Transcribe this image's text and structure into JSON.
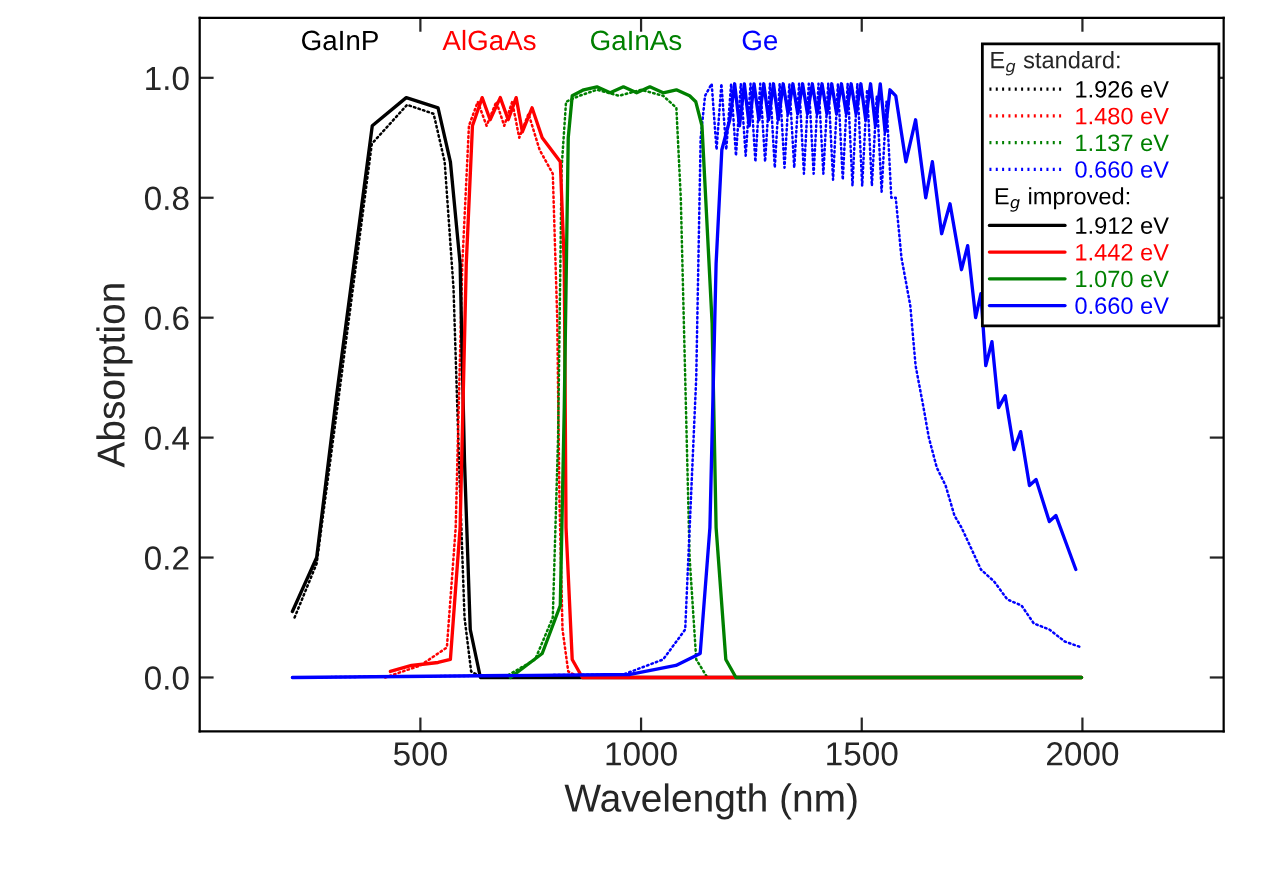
{
  "chart_data": {
    "type": "line",
    "xlabel": "Wavelength (nm)",
    "ylabel": "Absorption",
    "xlim": [
      0,
      2320
    ],
    "ylim": [
      -0.09,
      1.1
    ],
    "xticks": [
      500,
      1000,
      1500,
      2000
    ],
    "yticks": [
      {
        "value": 0,
        "label": "0.0"
      },
      {
        "value": 0.2,
        "label": "0.2"
      },
      {
        "value": 0.4,
        "label": "0.4"
      },
      {
        "value": 0.6,
        "label": "0.6"
      },
      {
        "value": 0.8,
        "label": "0.8"
      },
      {
        "value": 1,
        "label": "1.0"
      }
    ],
    "grid": false,
    "legend": "top right",
    "legend_title": "E$_{g}$ standard:",
    "marker": "none",
    "annotations": [
      "GaInP",
      "AlGaAs",
      "GaInAs",
      "Ge",
      "E$_{g}$ improved:"
    ],
    "series": [
      {
        "name": "1.926 eV",
        "color": "#000000",
        "line_style": "dotted",
        "x": [
          215,
          265,
          310,
          390,
          470,
          530,
          555,
          575,
          588,
          600,
          615,
          640,
          1998
        ],
        "values": [
          0.1,
          0.19,
          0.44,
          0.89,
          0.955,
          0.94,
          0.86,
          0.65,
          0.35,
          0.1,
          0.01,
          0,
          0
        ]
      },
      {
        "name": "1.480 eV",
        "color": "#ff0000",
        "line_style": "dotted",
        "x": [
          420,
          500,
          560,
          580,
          595,
          610,
          630,
          650,
          672,
          690,
          708,
          724,
          745,
          770,
          800,
          810,
          815,
          822,
          835,
          860
        ],
        "values": [
          0,
          0.02,
          0.05,
          0.25,
          0.69,
          0.92,
          0.96,
          0.92,
          0.96,
          0.92,
          0.96,
          0.9,
          0.94,
          0.88,
          0.84,
          0.6,
          0.3,
          0.08,
          0.01,
          0
        ]
      },
      {
        "name": "1.137 eV",
        "color": "#008000",
        "line_style": "dotted",
        "x": [
          690,
          760,
          800,
          812,
          820,
          830,
          860,
          900,
          950,
          1000,
          1050,
          1080,
          1090,
          1100,
          1110,
          1125,
          1150,
          1998
        ],
        "values": [
          0,
          0.03,
          0.1,
          0.4,
          0.85,
          0.96,
          0.97,
          0.98,
          0.97,
          0.98,
          0.97,
          0.95,
          0.8,
          0.5,
          0.2,
          0.03,
          0,
          0
        ]
      },
      {
        "name": "0.660 eV",
        "color": "#0000ff",
        "line_style": "dotted",
        "x": [
          210,
          960,
          1050,
          1100,
          1125,
          1135,
          1145,
          1160,
          1171,
          1182,
          1193,
          1204,
          1215,
          1226,
          1237,
          1248,
          1259,
          1270,
          1281,
          1292,
          1303,
          1314,
          1325,
          1336,
          1347,
          1358,
          1369,
          1380,
          1391,
          1402,
          1413,
          1424,
          1435,
          1446,
          1457,
          1468,
          1479,
          1490,
          1501,
          1512,
          1523,
          1534,
          1545,
          1556,
          1567,
          1577,
          1590,
          1610,
          1622,
          1640,
          1652,
          1670,
          1690,
          1710,
          1726,
          1745,
          1770,
          1800,
          1830,
          1862,
          1890,
          1925,
          1960,
          1998
        ],
        "values": [
          0,
          0.005,
          0.03,
          0.08,
          0.5,
          0.9,
          0.97,
          0.99,
          0.88,
          0.99,
          0.88,
          0.99,
          0.87,
          0.99,
          0.87,
          0.99,
          0.86,
          0.99,
          0.86,
          0.99,
          0.85,
          0.99,
          0.85,
          0.99,
          0.85,
          0.99,
          0.84,
          0.99,
          0.84,
          0.99,
          0.84,
          0.99,
          0.83,
          0.99,
          0.83,
          0.99,
          0.82,
          0.99,
          0.82,
          0.98,
          0.82,
          0.97,
          0.81,
          0.96,
          0.8,
          0.8,
          0.7,
          0.62,
          0.52,
          0.45,
          0.4,
          0.35,
          0.32,
          0.27,
          0.25,
          0.22,
          0.18,
          0.16,
          0.13,
          0.12,
          0.09,
          0.08,
          0.06,
          0.05
        ]
      },
      {
        "name": "1.912 eV",
        "color": "#000000",
        "line_style": "solid",
        "x": [
          210,
          265,
          310,
          391,
          468,
          540,
          568,
          590,
          600,
          613,
          636,
          1998
        ],
        "values": [
          0.11,
          0.2,
          0.47,
          0.92,
          0.967,
          0.95,
          0.86,
          0.69,
          0.36,
          0.08,
          0,
          0
        ]
      },
      {
        "name": "1.442 eV",
        "color": "#ff0000",
        "line_style": "solid",
        "x": [
          432,
          480,
          540,
          568,
          590,
          604,
          618,
          640,
          658,
          681,
          699,
          717,
          731,
          753,
          776,
          817,
          826,
          830,
          844,
          867,
          1998
        ],
        "values": [
          0.01,
          0.02,
          0.025,
          0.03,
          0.25,
          0.69,
          0.92,
          0.967,
          0.93,
          0.967,
          0.93,
          0.967,
          0.91,
          0.95,
          0.9,
          0.86,
          0.69,
          0.25,
          0.03,
          0,
          0
        ]
      },
      {
        "name": "1.070 eV",
        "color": "#008000",
        "line_style": "solid",
        "x": [
          704,
          776,
          817,
          826,
          835,
          844,
          870,
          900,
          930,
          960,
          990,
          1020,
          1050,
          1080,
          1110,
          1124,
          1138,
          1161,
          1170,
          1192,
          1215,
          1998
        ],
        "values": [
          0,
          0.04,
          0.12,
          0.45,
          0.9,
          0.97,
          0.98,
          0.985,
          0.975,
          0.985,
          0.975,
          0.985,
          0.975,
          0.98,
          0.97,
          0.96,
          0.92,
          0.59,
          0.25,
          0.03,
          0,
          0
        ]
      },
      {
        "name": "0.660 eV",
        "color": "#0000ff",
        "line_style": "solid",
        "x": [
          210,
          975,
          1079,
          1134,
          1156,
          1170,
          1183,
          1201,
          1212,
          1223,
          1234,
          1245,
          1256,
          1267,
          1278,
          1289,
          1300,
          1311,
          1322,
          1333,
          1344,
          1355,
          1366,
          1377,
          1388,
          1399,
          1410,
          1421,
          1432,
          1443,
          1454,
          1465,
          1476,
          1487,
          1498,
          1509,
          1520,
          1531,
          1542,
          1553,
          1564,
          1577,
          1600,
          1622,
          1645,
          1660,
          1681,
          1700,
          1726,
          1740,
          1758,
          1770,
          1781,
          1795,
          1810,
          1825,
          1845,
          1860,
          1880,
          1895,
          1925,
          1940,
          1965,
          1985
        ],
        "values": [
          0,
          0.005,
          0.02,
          0.04,
          0.25,
          0.69,
          0.88,
          0.93,
          0.99,
          0.92,
          0.99,
          0.92,
          0.99,
          0.93,
          0.99,
          0.93,
          0.99,
          0.93,
          0.99,
          0.94,
          0.99,
          0.94,
          0.99,
          0.94,
          0.99,
          0.94,
          0.99,
          0.94,
          0.99,
          0.94,
          0.99,
          0.94,
          0.99,
          0.94,
          0.99,
          0.93,
          0.99,
          0.92,
          0.99,
          0.91,
          0.98,
          0.97,
          0.86,
          0.93,
          0.8,
          0.86,
          0.74,
          0.79,
          0.68,
          0.72,
          0.6,
          0.64,
          0.52,
          0.56,
          0.45,
          0.47,
          0.38,
          0.41,
          0.32,
          0.33,
          0.26,
          0.27,
          0.22,
          0.18
        ]
      }
    ]
  }
}
